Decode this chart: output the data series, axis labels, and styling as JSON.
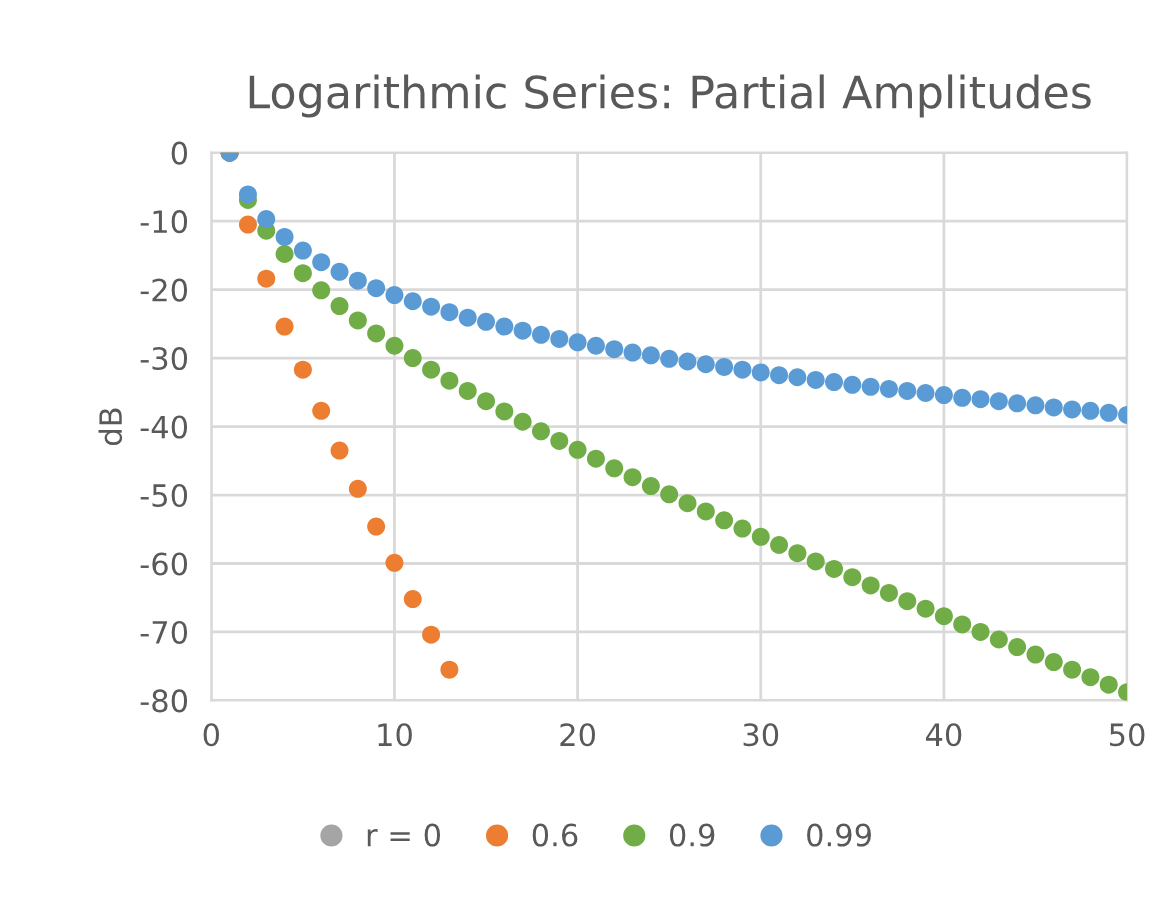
{
  "chart_data": {
    "type": "scatter",
    "title": "Logarithmic Series: Partial Amplitudes",
    "ylabel": "dB",
    "xlim": [
      0,
      50
    ],
    "xticks": [
      0,
      10,
      20,
      30,
      40,
      50
    ],
    "ylim": [
      -80,
      0
    ],
    "yticks": [
      0,
      -10,
      -20,
      -30,
      -40,
      -50,
      -60,
      -70,
      -80
    ],
    "grid": true,
    "legend": "bottom",
    "marker": "circle",
    "series": [
      {
        "name": "r = 0",
        "color": "#a5a5a5",
        "x": [
          1
        ],
        "values": [
          0
        ]
      },
      {
        "name": "0.6",
        "color": "#ed7d31",
        "x": [
          1,
          2,
          3,
          4,
          5,
          6,
          7,
          8,
          9,
          10,
          11,
          12,
          13
        ],
        "values": [
          0,
          -10.5,
          -18.4,
          -25.4,
          -31.7,
          -37.7,
          -43.5,
          -49.1,
          -54.6,
          -59.9,
          -65.2,
          -70.4,
          -75.5
        ]
      },
      {
        "name": "0.9",
        "color": "#70ad47",
        "x": [
          1,
          2,
          3,
          4,
          5,
          6,
          7,
          8,
          9,
          10,
          11,
          12,
          13,
          14,
          15,
          16,
          17,
          18,
          19,
          20,
          21,
          22,
          23,
          24,
          25,
          26,
          27,
          28,
          29,
          30,
          31,
          32,
          33,
          34,
          35,
          36,
          37,
          38,
          39,
          40,
          41,
          42,
          43,
          44,
          45,
          46,
          47,
          48,
          49,
          50
        ],
        "values": [
          0,
          -6.9,
          -11.4,
          -14.8,
          -17.6,
          -20.1,
          -22.4,
          -24.5,
          -26.4,
          -28.2,
          -30.0,
          -31.7,
          -33.3,
          -34.8,
          -36.3,
          -37.8,
          -39.3,
          -40.7,
          -42.1,
          -43.4,
          -44.7,
          -46.1,
          -47.4,
          -48.7,
          -49.9,
          -51.2,
          -52.4,
          -53.7,
          -54.9,
          -56.1,
          -57.3,
          -58.5,
          -59.7,
          -60.8,
          -62.0,
          -63.2,
          -64.3,
          -65.5,
          -66.6,
          -67.7,
          -68.9,
          -70.0,
          -71.1,
          -72.2,
          -73.3,
          -74.4,
          -75.5,
          -76.6,
          -77.7,
          -78.8
        ]
      },
      {
        "name": "0.99",
        "color": "#5b9bd5",
        "x": [
          1,
          2,
          3,
          4,
          5,
          6,
          7,
          8,
          9,
          10,
          11,
          12,
          13,
          14,
          15,
          16,
          17,
          18,
          19,
          20,
          21,
          22,
          23,
          24,
          25,
          26,
          27,
          28,
          29,
          30,
          31,
          32,
          33,
          34,
          35,
          36,
          37,
          38,
          39,
          40,
          41,
          42,
          43,
          44,
          45,
          46,
          47,
          48,
          49,
          50
        ],
        "values": [
          0,
          -6.1,
          -9.7,
          -12.3,
          -14.3,
          -16.0,
          -17.4,
          -18.7,
          -19.8,
          -20.8,
          -21.7,
          -22.5,
          -23.3,
          -24.1,
          -24.7,
          -25.4,
          -26.0,
          -26.6,
          -27.2,
          -27.7,
          -28.2,
          -28.7,
          -29.2,
          -29.6,
          -30.1,
          -30.5,
          -30.9,
          -31.3,
          -31.7,
          -32.1,
          -32.5,
          -32.8,
          -33.2,
          -33.5,
          -33.9,
          -34.2,
          -34.5,
          -34.8,
          -35.1,
          -35.4,
          -35.8,
          -36.0,
          -36.3,
          -36.6,
          -36.9,
          -37.2,
          -37.5,
          -37.7,
          -38.0,
          -38.3
        ]
      }
    ]
  }
}
